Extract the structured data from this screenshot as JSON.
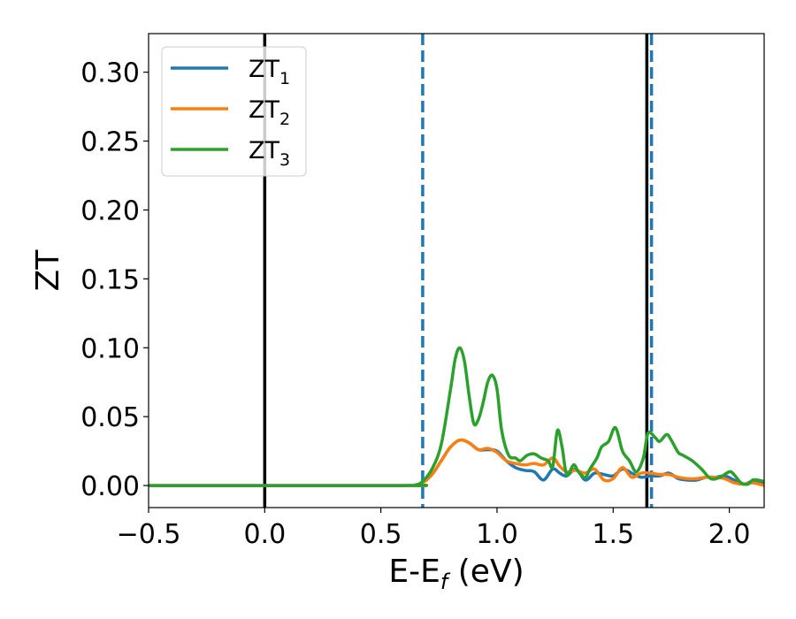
{
  "chart_data": {
    "type": "line",
    "title": "",
    "xlabel": {
      "main": "E-E",
      "sub": "f",
      "suffix": " (eV)"
    },
    "ylabel": "ZT",
    "xlim": [
      -0.5,
      2.15
    ],
    "ylim": [
      -0.016,
      0.328
    ],
    "x_ticks": [
      -0.5,
      0.0,
      0.5,
      1.0,
      1.5,
      2.0
    ],
    "x_tick_labels": [
      "−0.5",
      "0.0",
      "0.5",
      "1.0",
      "1.5",
      "2.0"
    ],
    "y_ticks": [
      0.0,
      0.05,
      0.1,
      0.15,
      0.2,
      0.25,
      0.3
    ],
    "y_tick_labels": [
      "0.00",
      "0.05",
      "0.10",
      "0.15",
      "0.20",
      "0.25",
      "0.30"
    ],
    "grid": false,
    "legend_position": "top-left",
    "vertical_lines": [
      {
        "x": 0.0,
        "style": "solid",
        "color": "#000000"
      },
      {
        "x": 0.68,
        "style": "dashed",
        "color": "#1f77b4"
      },
      {
        "x": 1.645,
        "style": "solid",
        "color": "#000000"
      },
      {
        "x": 1.665,
        "style": "dashed",
        "color": "#1f77b4"
      }
    ],
    "series": [
      {
        "name": "ZT",
        "sub": "1",
        "color": "#1f77b4",
        "x": [
          -0.5,
          0.6,
          0.65,
          0.68,
          0.72,
          0.76,
          0.8,
          0.84,
          0.88,
          0.92,
          0.96,
          1.0,
          1.04,
          1.08,
          1.12,
          1.16,
          1.2,
          1.24,
          1.27,
          1.3,
          1.34,
          1.38,
          1.42,
          1.46,
          1.5,
          1.54,
          1.58,
          1.62,
          1.66,
          1.7,
          1.74,
          1.78,
          1.82,
          1.86,
          1.9,
          1.94,
          1.98,
          2.02,
          2.06,
          2.1,
          2.15
        ],
        "y": [
          0.0,
          0.0,
          0.0005,
          0.002,
          0.008,
          0.018,
          0.028,
          0.033,
          0.031,
          0.026,
          0.026,
          0.025,
          0.018,
          0.013,
          0.011,
          0.01,
          0.004,
          0.012,
          0.009,
          0.007,
          0.012,
          0.004,
          0.009,
          0.008,
          0.007,
          0.012,
          0.009,
          0.006,
          0.007,
          0.007,
          0.009,
          0.005,
          0.004,
          0.004,
          0.006,
          0.006,
          0.007,
          0.004,
          0.001,
          0.003,
          0.002
        ]
      },
      {
        "name": "ZT",
        "sub": "2",
        "color": "#ff7f0e",
        "x": [
          -0.5,
          0.6,
          0.65,
          0.68,
          0.72,
          0.76,
          0.8,
          0.84,
          0.88,
          0.92,
          0.96,
          1.0,
          1.04,
          1.08,
          1.12,
          1.16,
          1.2,
          1.24,
          1.27,
          1.3,
          1.34,
          1.38,
          1.42,
          1.46,
          1.5,
          1.54,
          1.58,
          1.62,
          1.66,
          1.7,
          1.74,
          1.78,
          1.82,
          1.86,
          1.9,
          1.94,
          1.98,
          2.02,
          2.06,
          2.1,
          2.15
        ],
        "y": [
          0.0,
          0.0,
          0.0005,
          0.002,
          0.008,
          0.018,
          0.028,
          0.033,
          0.031,
          0.026,
          0.027,
          0.024,
          0.018,
          0.016,
          0.015,
          0.016,
          0.015,
          0.02,
          0.014,
          0.01,
          0.011,
          0.009,
          0.012,
          0.004,
          0.005,
          0.013,
          0.006,
          0.009,
          0.009,
          0.008,
          0.008,
          0.006,
          0.005,
          0.005,
          0.006,
          0.006,
          0.005,
          0.002,
          0.001,
          0.002,
          0.0
        ]
      },
      {
        "name": "ZT",
        "sub": "3",
        "color": "#2ca02c",
        "x": [
          -0.5,
          0.6,
          0.65,
          0.68,
          0.72,
          0.76,
          0.8,
          0.82,
          0.84,
          0.86,
          0.88,
          0.9,
          0.92,
          0.94,
          0.96,
          0.98,
          1.0,
          1.02,
          1.05,
          1.08,
          1.1,
          1.13,
          1.16,
          1.19,
          1.22,
          1.24,
          1.26,
          1.28,
          1.3,
          1.33,
          1.35,
          1.38,
          1.4,
          1.43,
          1.45,
          1.48,
          1.51,
          1.54,
          1.57,
          1.6,
          1.63,
          1.65,
          1.68,
          1.7,
          1.73,
          1.75,
          1.78,
          1.8,
          1.84,
          1.88,
          1.92,
          1.96,
          2.0,
          2.02,
          2.05,
          2.08,
          2.1,
          2.12,
          2.15
        ],
        "y": [
          0.0,
          0.0,
          0.0005,
          0.003,
          0.012,
          0.03,
          0.07,
          0.092,
          0.1,
          0.09,
          0.065,
          0.045,
          0.048,
          0.06,
          0.075,
          0.08,
          0.07,
          0.04,
          0.022,
          0.02,
          0.018,
          0.022,
          0.023,
          0.02,
          0.018,
          0.014,
          0.04,
          0.028,
          0.008,
          0.015,
          0.01,
          0.006,
          0.012,
          0.02,
          0.028,
          0.032,
          0.042,
          0.025,
          0.018,
          0.01,
          0.02,
          0.038,
          0.035,
          0.032,
          0.037,
          0.033,
          0.024,
          0.022,
          0.018,
          0.012,
          0.005,
          0.006,
          0.01,
          0.008,
          0.002,
          0.001,
          0.004,
          0.004,
          0.003
        ]
      }
    ]
  }
}
